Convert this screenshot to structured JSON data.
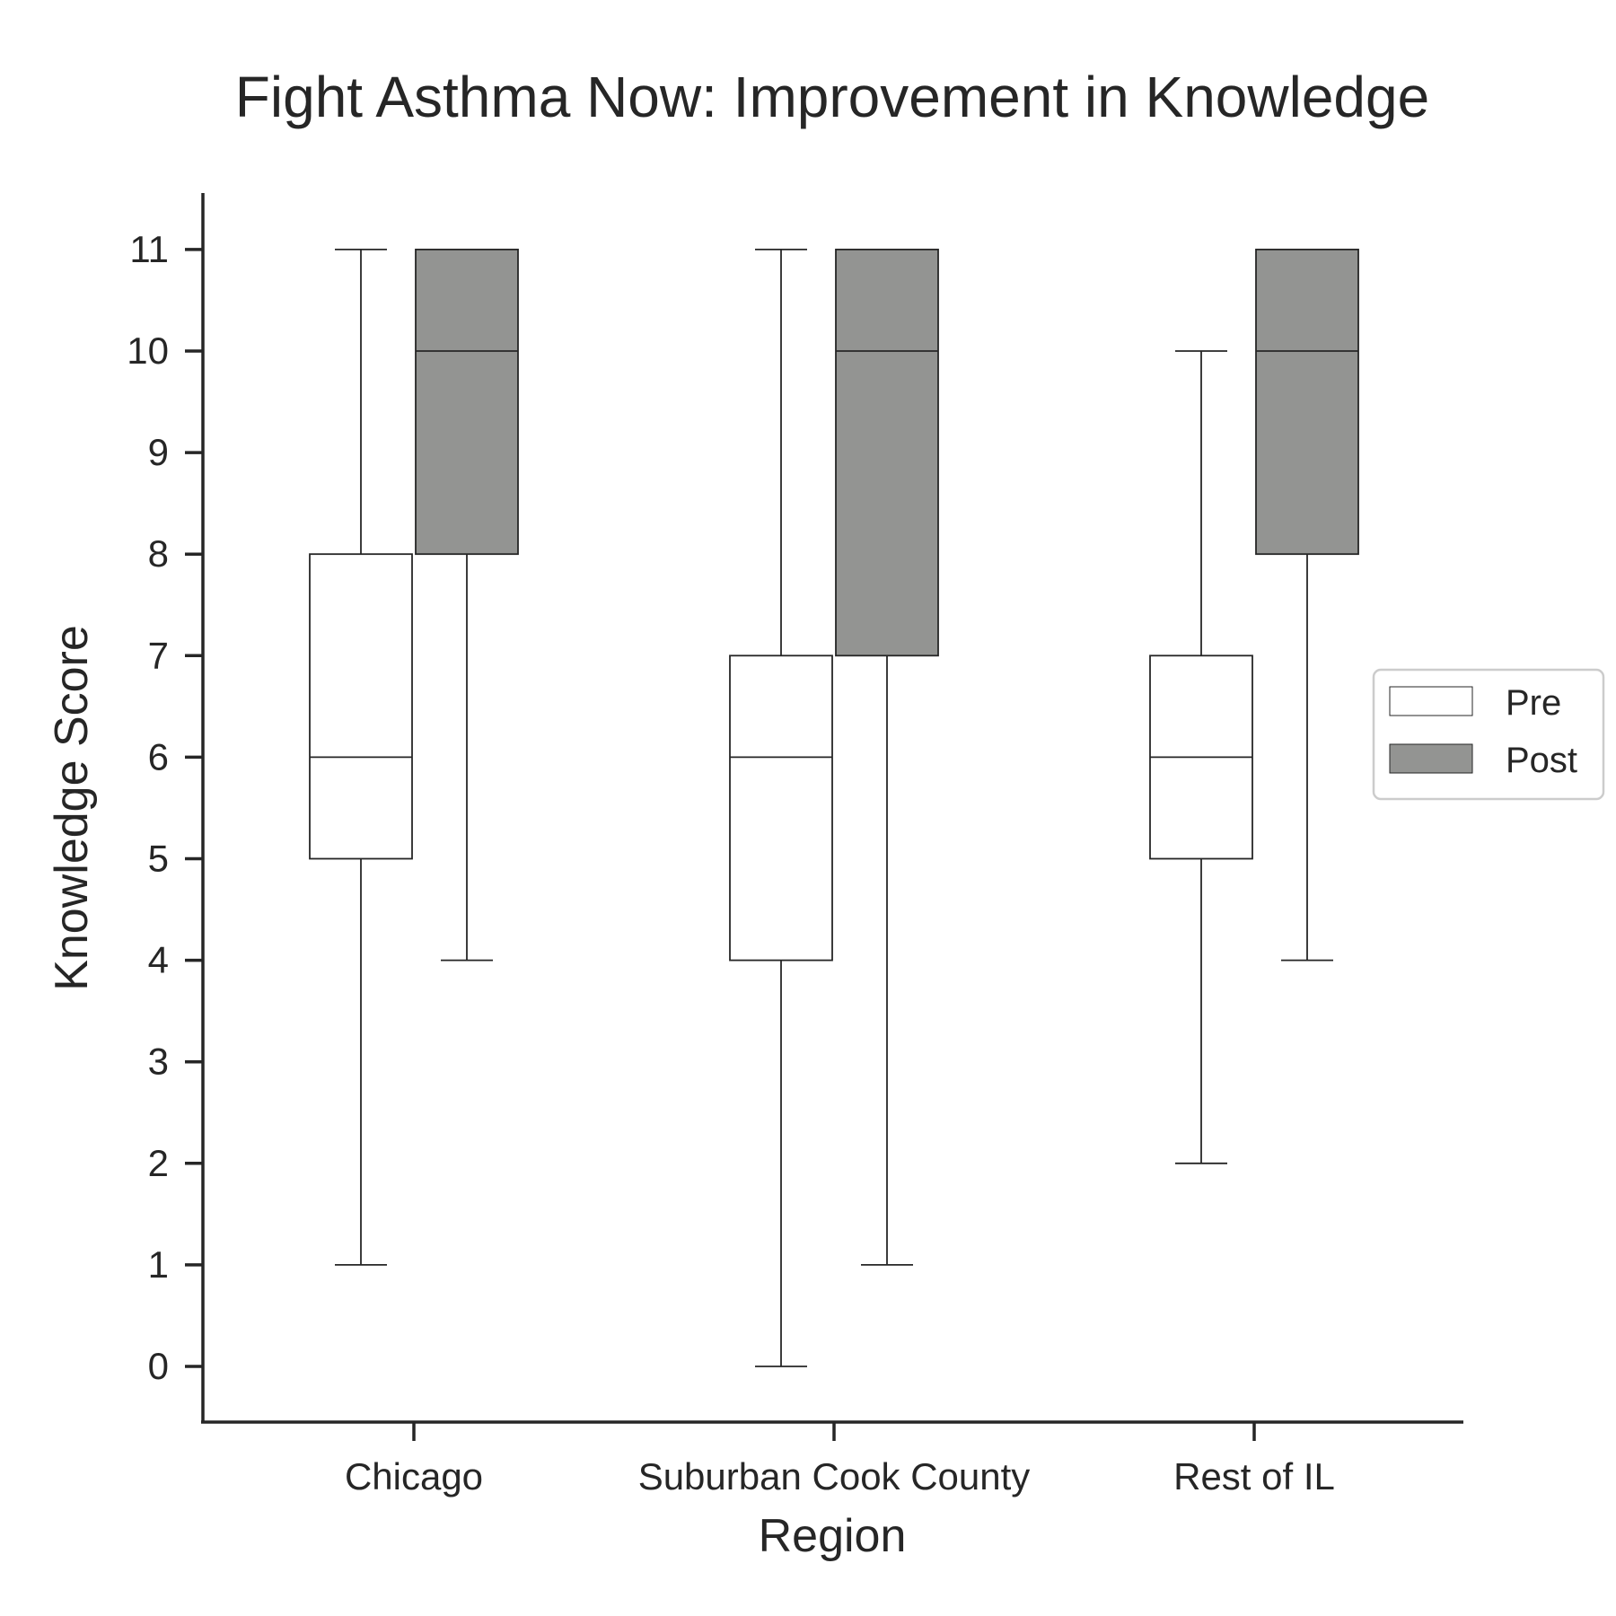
{
  "chart_data": {
    "type": "box",
    "title": "Fight Asthma Now: Improvement in Knowledge",
    "xlabel": "Region",
    "ylabel": "Knowledge Score",
    "categories": [
      "Chicago",
      "Suburban Cook County",
      "Rest of IL"
    ],
    "ylim": [
      -0.55,
      11.55
    ],
    "yticks": [
      0,
      1,
      2,
      3,
      4,
      5,
      6,
      7,
      8,
      9,
      10,
      11
    ],
    "legend_position": "right",
    "series": [
      {
        "name": "Pre",
        "color": "#ffffff",
        "boxes": [
          {
            "whisker_low": 1,
            "q1": 5,
            "median": 6,
            "q3": 8,
            "whisker_high": 11
          },
          {
            "whisker_low": 0,
            "q1": 4,
            "median": 6,
            "q3": 7,
            "whisker_high": 11
          },
          {
            "whisker_low": 2,
            "q1": 5,
            "median": 6,
            "q3": 7,
            "whisker_high": 10
          }
        ]
      },
      {
        "name": "Post",
        "color": "#939492",
        "boxes": [
          {
            "whisker_low": 4,
            "q1": 8,
            "median": 10,
            "q3": 11,
            "whisker_high": 11
          },
          {
            "whisker_low": 1,
            "q1": 7,
            "median": 10,
            "q3": 11,
            "whisker_high": 11
          },
          {
            "whisker_low": 4,
            "q1": 8,
            "median": 10,
            "q3": 11,
            "whisker_high": 11
          }
        ]
      }
    ]
  }
}
